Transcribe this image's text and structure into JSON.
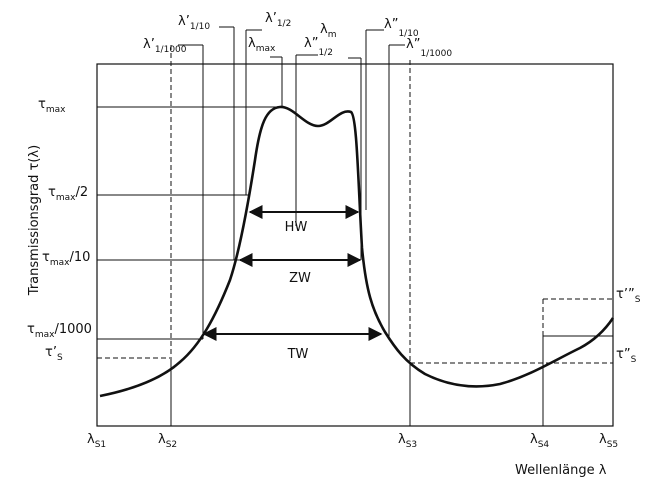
{
  "colors": {
    "ink": "#111111",
    "background": "#ffffff"
  },
  "axis_labels": {
    "y": "Transmissionsgrad τ(λ)",
    "x": "Wellenlänge λ"
  },
  "x_ticks": [
    {
      "base": "λ",
      "sub": "S1"
    },
    {
      "base": "λ",
      "sub": "S2"
    },
    {
      "base": "λ",
      "sub": "S3"
    },
    {
      "base": "λ",
      "sub": "S4"
    },
    {
      "base": "λ",
      "sub": "S5"
    }
  ],
  "y_labels": [
    {
      "base": "τ",
      "sub": "max",
      "rest": ""
    },
    {
      "base": "τ",
      "sub": "max",
      "rest": "/2"
    },
    {
      "base": "τ",
      "sub": "max",
      "rest": "/10"
    },
    {
      "base": "τ",
      "sub": "max",
      "rest": "/1000"
    },
    {
      "base": "τ’",
      "sub": "S",
      "rest": ""
    }
  ],
  "right_labels": [
    {
      "base": "τ’”",
      "sub": "S"
    },
    {
      "base": "τ”",
      "sub": "S"
    }
  ],
  "top_labels": [
    {
      "base": "λ’",
      "sub": "1/1000"
    },
    {
      "base": "λ’",
      "sub": "1/10"
    },
    {
      "base": "λ’",
      "sub": "1/2"
    },
    {
      "base": "λ",
      "sub": "max"
    },
    {
      "base": "λ",
      "sub": "m"
    },
    {
      "base": "λ”",
      "sub": "1/2"
    },
    {
      "base": "λ”",
      "sub": "1/10"
    },
    {
      "base": "λ”",
      "sub": "1/1000"
    }
  ],
  "widths": [
    {
      "label": "HW"
    },
    {
      "label": "ZW"
    },
    {
      "label": "TW"
    }
  ]
}
